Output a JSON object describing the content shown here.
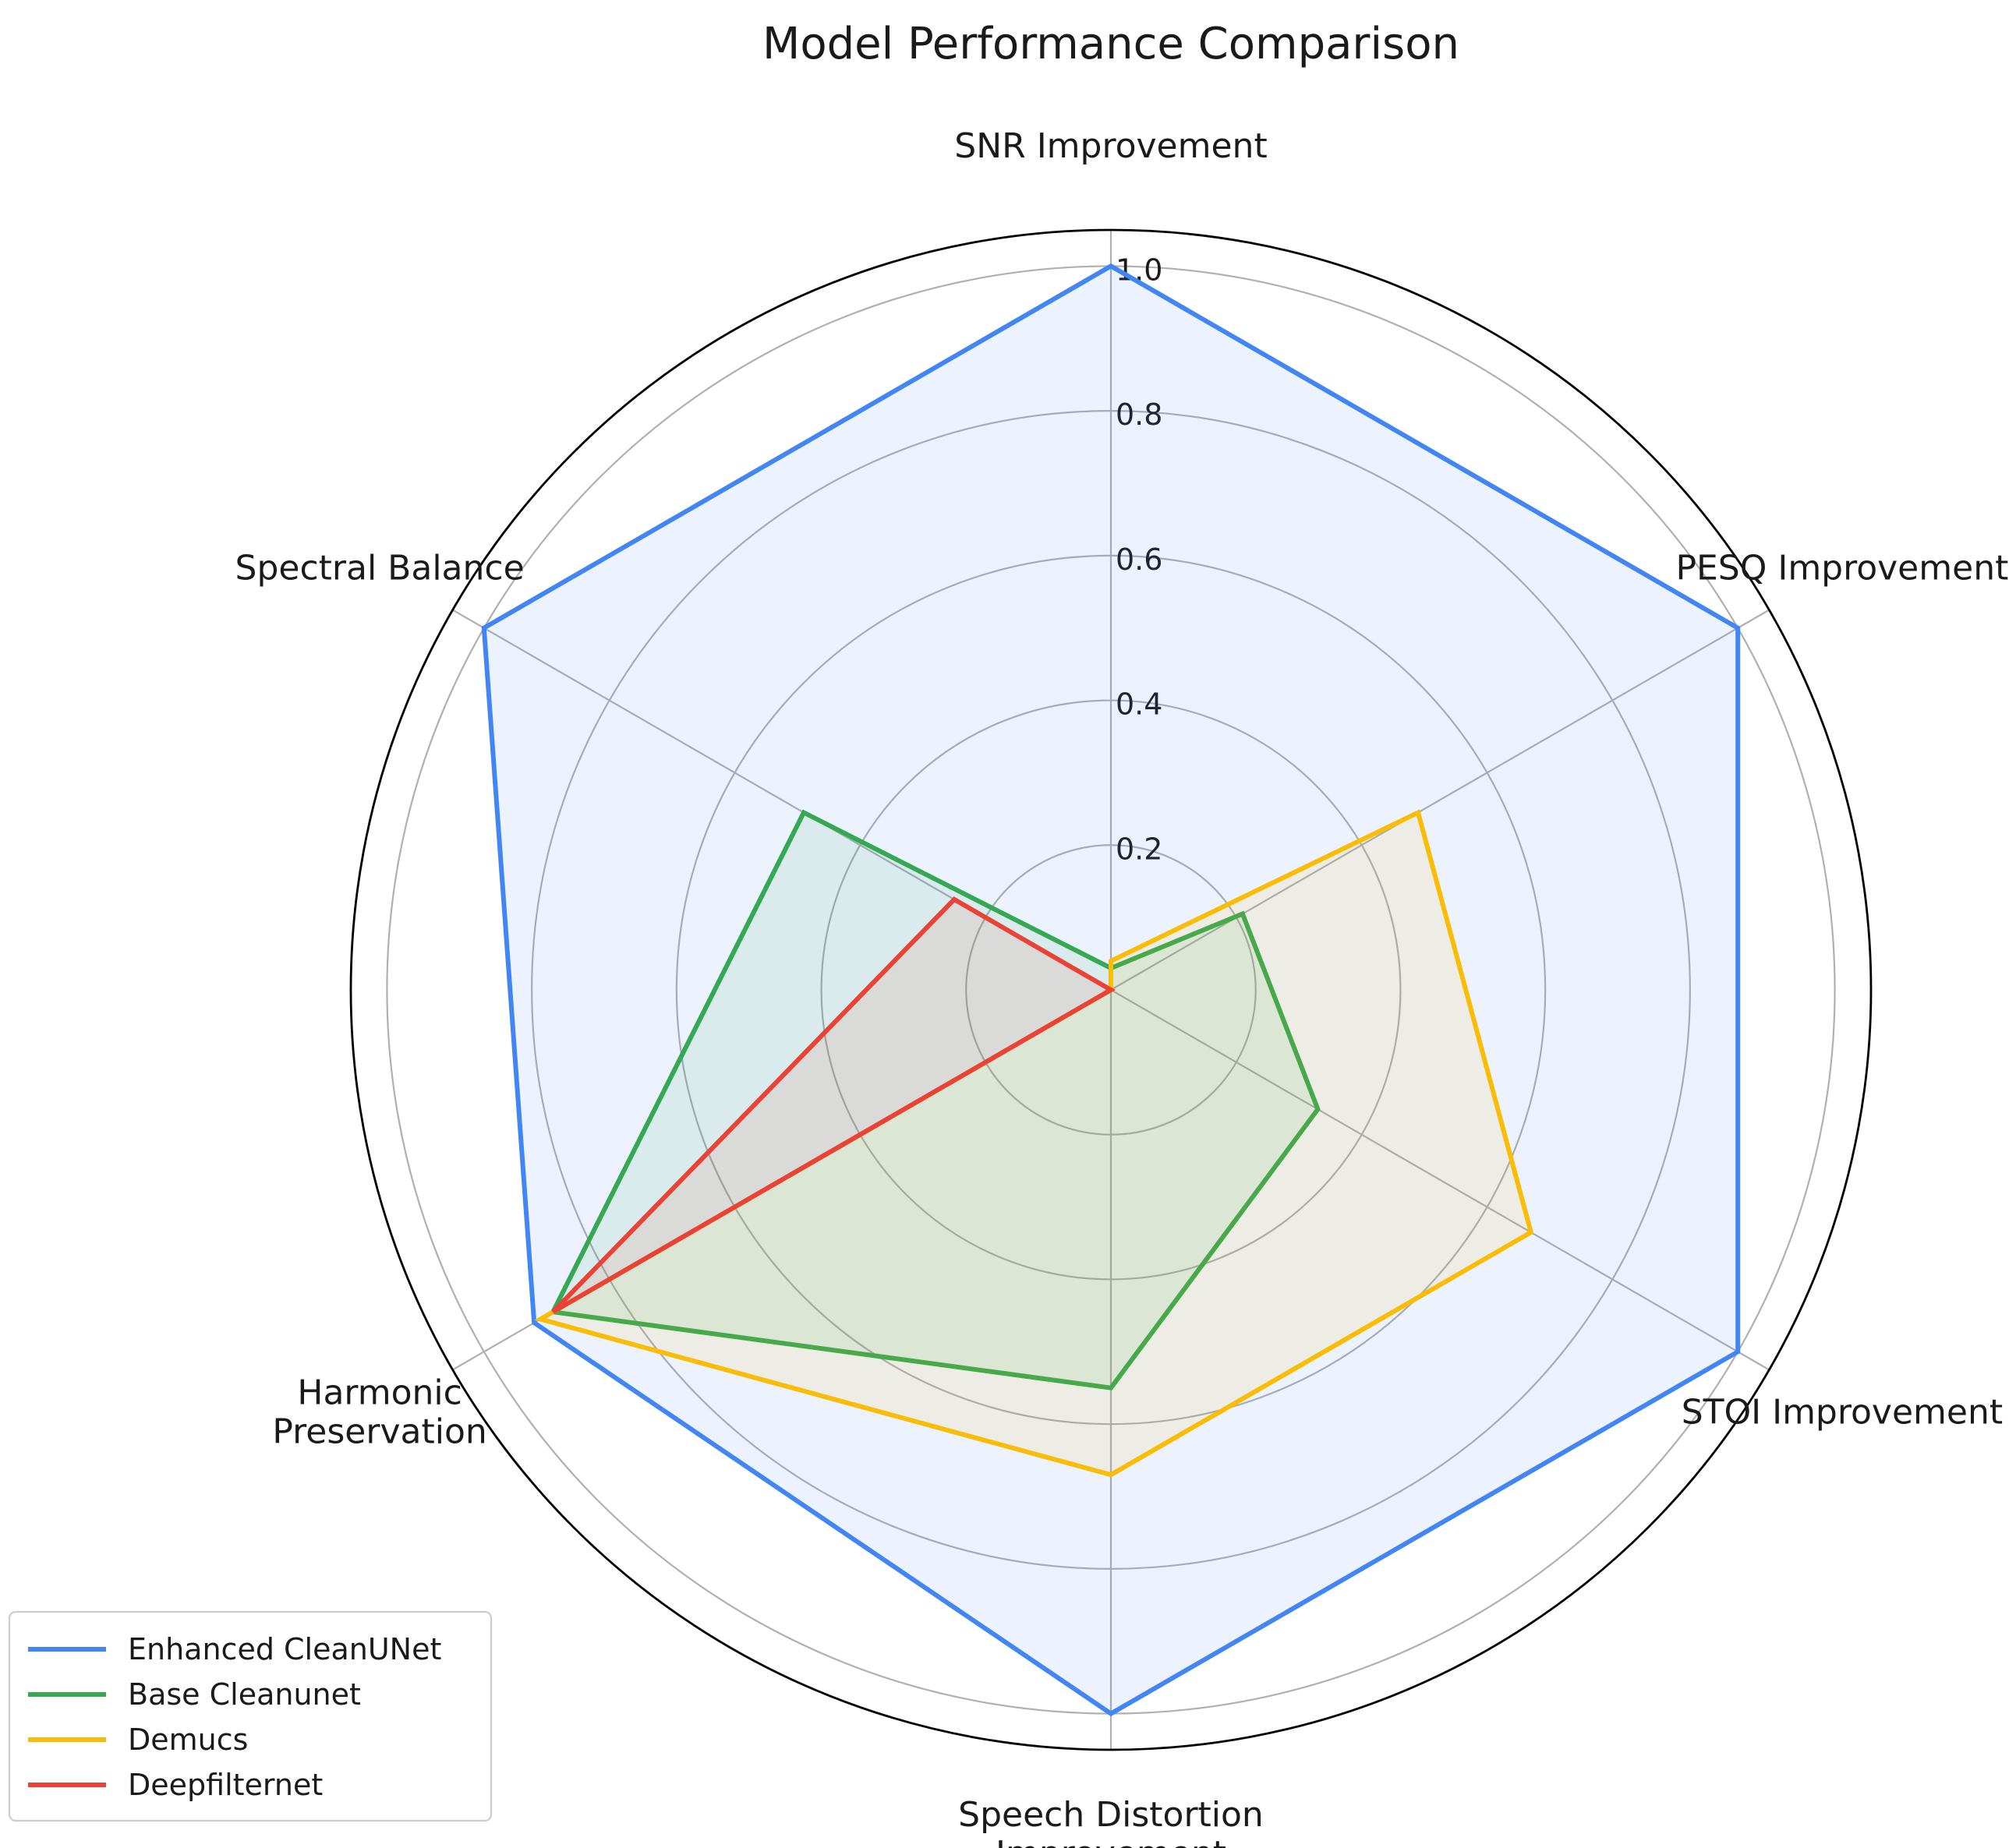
{
  "chart_data": {
    "type": "radar",
    "title": "Model Performance Comparison",
    "axes": [
      [
        "SNR Improvement"
      ],
      [
        "PESQ Improvement"
      ],
      [
        "STOI Improvement"
      ],
      [
        "Speech Distortion",
        "Improvement"
      ],
      [
        "Harmonic",
        "Preservation"
      ],
      [
        "Spectral Balance"
      ]
    ],
    "rlim": [
      0,
      1.05
    ],
    "rticks": [
      0.2,
      0.4,
      0.6,
      0.8,
      1.0
    ],
    "rtick_labels": [
      "0.2",
      "0.4",
      "0.6",
      "0.8",
      "1.0"
    ],
    "grid": true,
    "legend_position": "lower-left",
    "series": [
      {
        "name": "Enhanced CleanUNet",
        "color": "#4285f4",
        "fill_opacity": 0.1,
        "values": [
          1.0,
          1.0,
          1.0,
          1.0,
          0.92,
          1.0
        ]
      },
      {
        "name": "Base Cleanunet",
        "color": "#34a853",
        "fill_opacity": 0.1,
        "values": [
          0.03,
          0.21,
          0.33,
          0.55,
          0.89,
          0.49
        ]
      },
      {
        "name": "Demucs",
        "color": "#fbbc05",
        "fill_opacity": 0.1,
        "values": [
          0.04,
          0.49,
          0.67,
          0.67,
          0.91,
          0.0
        ]
      },
      {
        "name": "Deepfilternet",
        "color": "#ea4335",
        "fill_opacity": 0.1,
        "values": [
          0.0,
          0.0,
          0.0,
          0.0,
          0.89,
          0.25
        ]
      }
    ]
  }
}
